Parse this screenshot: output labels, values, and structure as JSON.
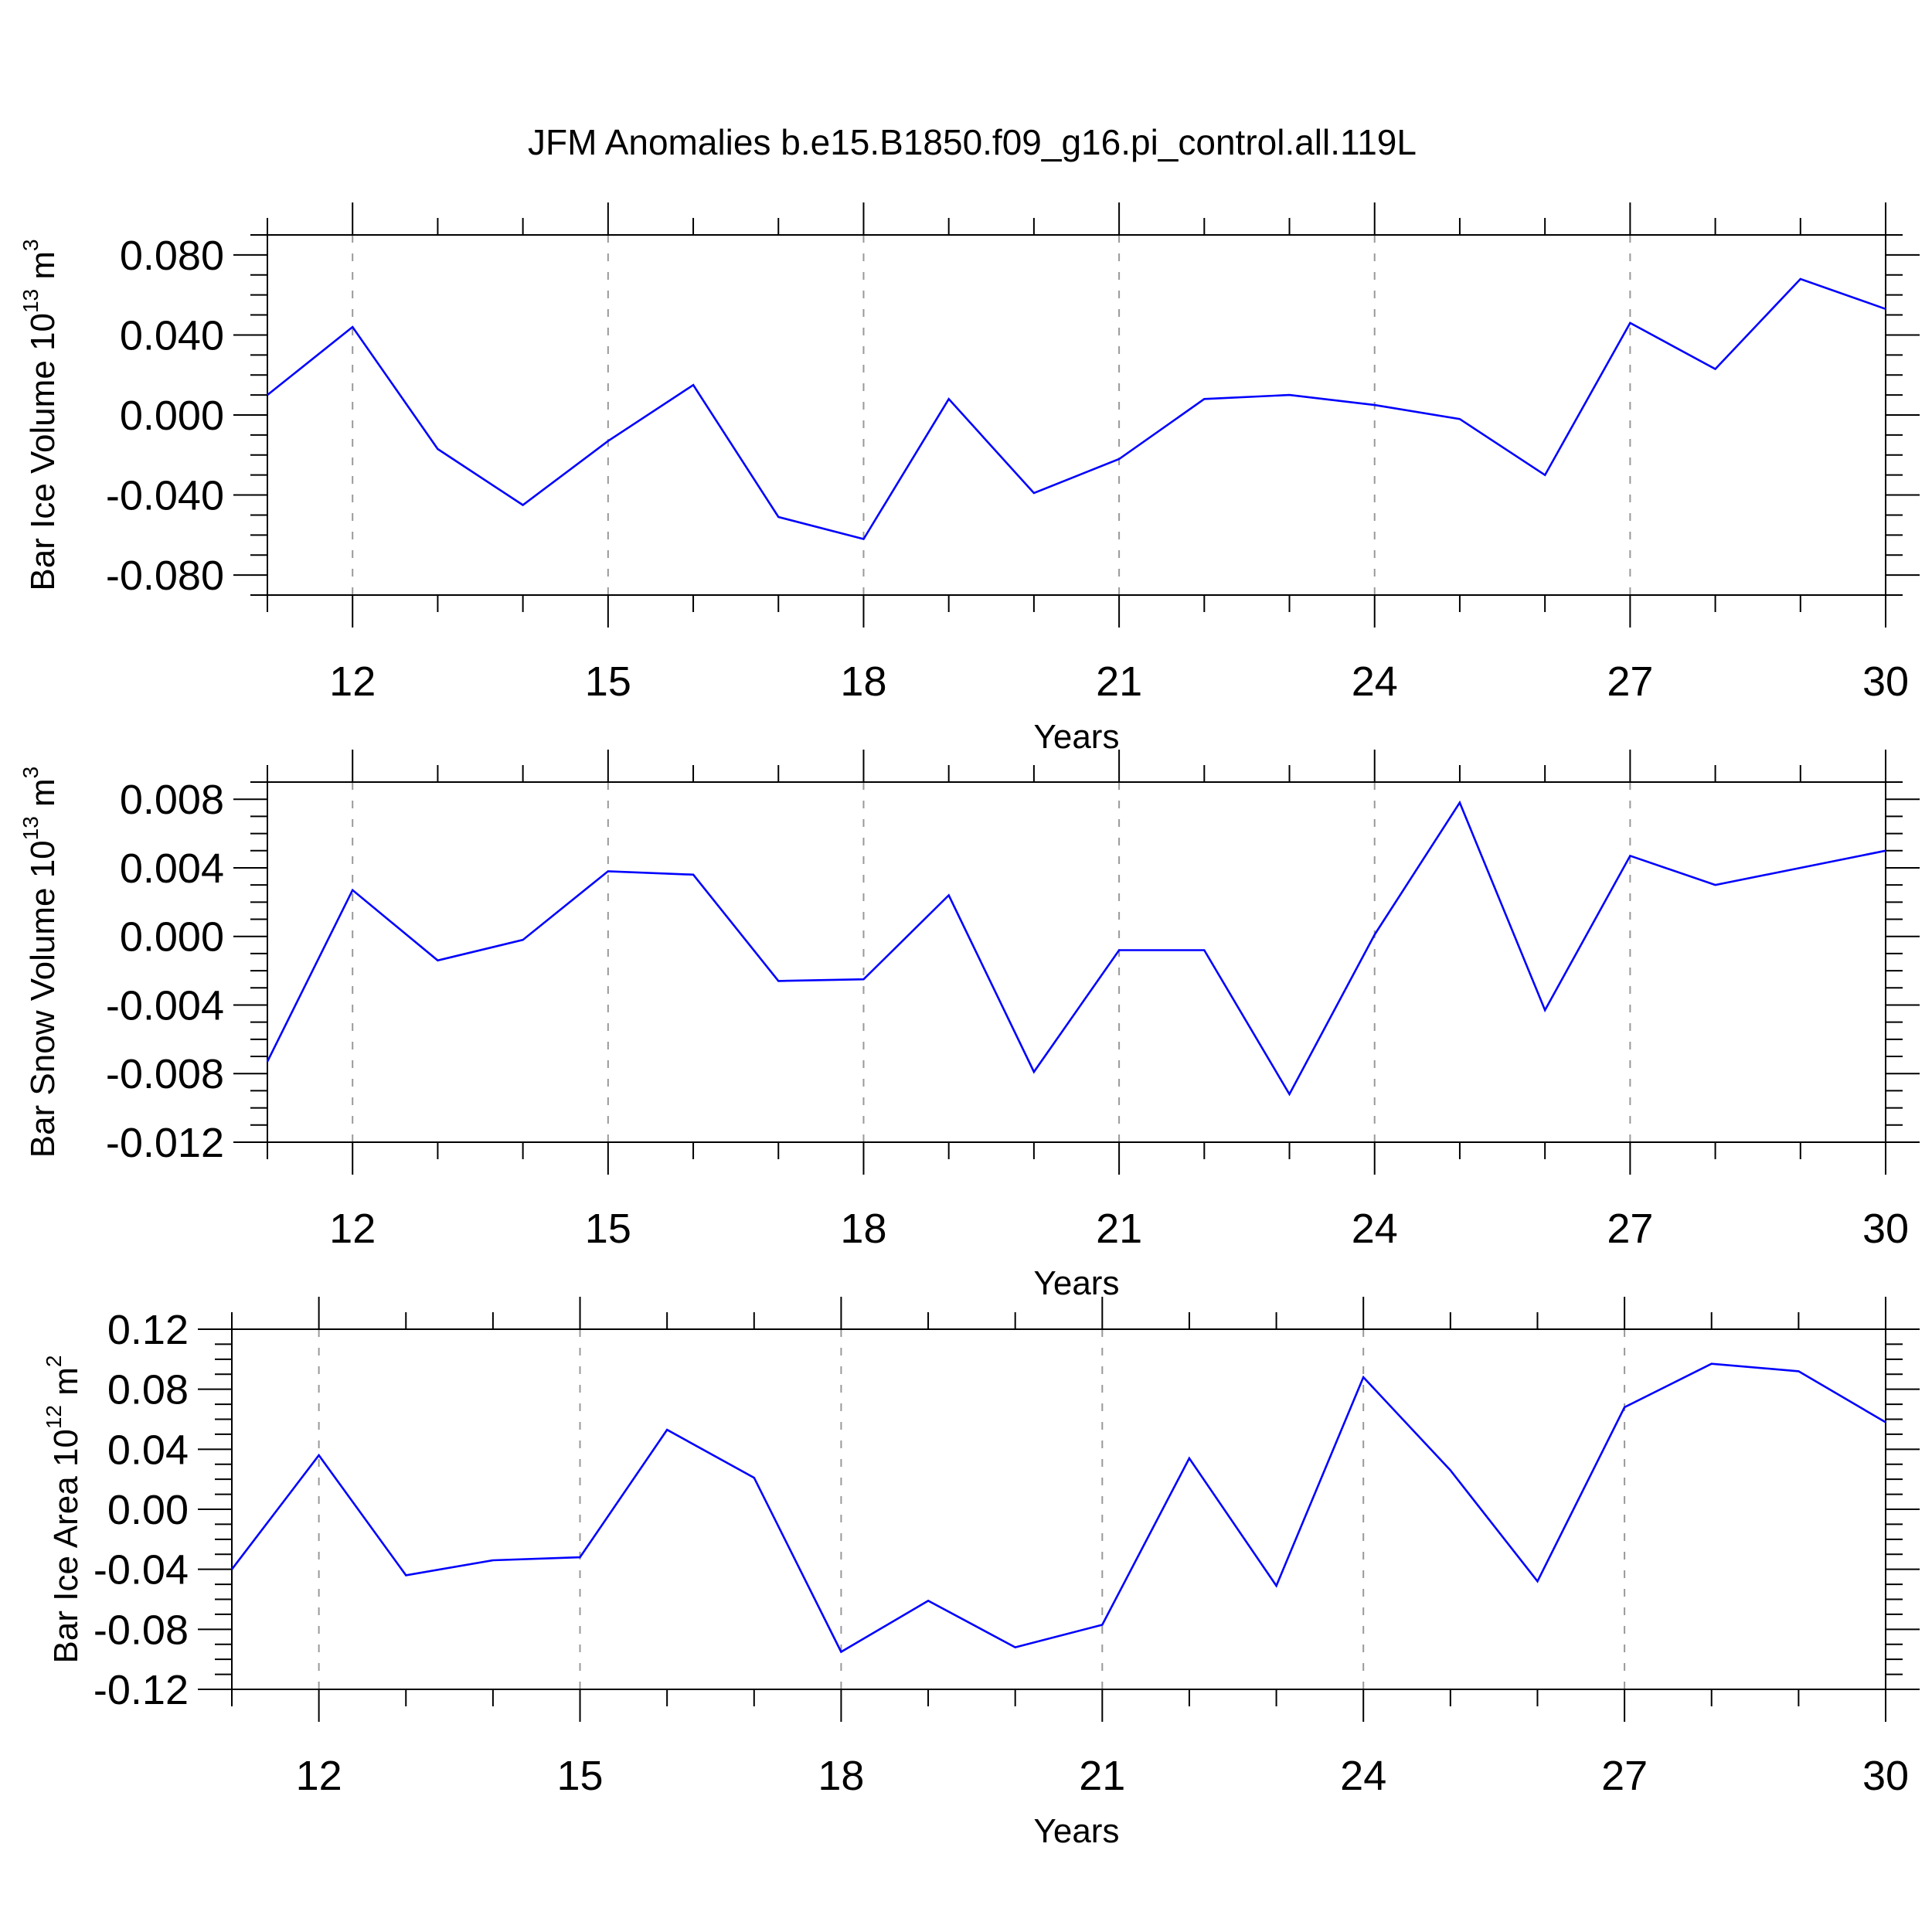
{
  "title": "JFM Anomalies b.e15.B1850.f09_g16.pi_control.all.119L",
  "chart_data": [
    {
      "type": "line",
      "title": "JFM Anomalies b.e15.B1850.f09_g16.pi_control.all.119L",
      "xlabel": "Years",
      "ylabel": {
        "base": "Bar Ice Volume 10",
        "exp": "13",
        "unit": " m",
        "unit_exp": "3"
      },
      "xlim": [
        11,
        30
      ],
      "ylim": [
        -0.09,
        0.09
      ],
      "xticks": [
        12,
        15,
        18,
        21,
        24,
        27,
        30
      ],
      "xtick_labels": [
        "12",
        "15",
        "18",
        "21",
        "24",
        "27",
        "30"
      ],
      "yticks": [
        -0.08,
        -0.04,
        0.0,
        0.04,
        0.08
      ],
      "ytick_labels": [
        "-0.080",
        "-0.040",
        "0.000",
        "0.040",
        "0.080"
      ],
      "y_minor_step": 0.01,
      "grid": "x-dashed",
      "color": "#0000ff",
      "x": [
        11,
        12,
        13,
        14,
        15,
        16,
        17,
        18,
        19,
        20,
        21,
        22,
        23,
        24,
        25,
        26,
        27,
        28,
        29,
        30
      ],
      "values": [
        0.01,
        0.044,
        -0.017,
        -0.045,
        -0.013,
        0.015,
        -0.051,
        -0.062,
        0.008,
        -0.039,
        -0.022,
        0.008,
        0.01,
        0.005,
        -0.002,
        -0.03,
        0.046,
        0.023,
        0.068,
        0.053
      ]
    },
    {
      "type": "line",
      "xlabel": "Years",
      "ylabel": {
        "base": "Bar Snow Volume 10",
        "exp": "13",
        "unit": " m",
        "unit_exp": "3"
      },
      "xlim": [
        11,
        30
      ],
      "ylim": [
        -0.012,
        0.009
      ],
      "xticks": [
        12,
        15,
        18,
        21,
        24,
        27,
        30
      ],
      "xtick_labels": [
        "12",
        "15",
        "18",
        "21",
        "24",
        "27",
        "30"
      ],
      "yticks": [
        -0.012,
        -0.008,
        -0.004,
        0.0,
        0.004,
        0.008
      ],
      "ytick_labels": [
        "-0.012",
        "-0.008",
        "-0.004",
        "0.000",
        "0.004",
        "0.008"
      ],
      "y_minor_step": 0.001,
      "grid": "x-dashed",
      "color": "#0000ff",
      "x": [
        11,
        12,
        13,
        14,
        15,
        16,
        17,
        18,
        19,
        20,
        21,
        22,
        23,
        24,
        25,
        26,
        27,
        28,
        29,
        30
      ],
      "values": [
        -0.0073,
        0.0027,
        -0.0014,
        -0.0002,
        0.0038,
        0.0036,
        -0.0026,
        -0.0025,
        0.0024,
        -0.0079,
        -0.0008,
        -0.0008,
        -0.0092,
        0.0001,
        0.0078,
        -0.0043,
        0.0047,
        0.003,
        0.004,
        0.005
      ]
    },
    {
      "type": "line",
      "xlabel": "Years",
      "ylabel": {
        "base": "Bar Ice Area 10",
        "exp": "12",
        "unit": " m",
        "unit_exp": "2"
      },
      "xlim": [
        11,
        30
      ],
      "ylim": [
        -0.12,
        0.12
      ],
      "xticks": [
        12,
        15,
        18,
        21,
        24,
        27,
        30
      ],
      "xtick_labels": [
        "12",
        "15",
        "18",
        "21",
        "24",
        "27",
        "30"
      ],
      "yticks": [
        -0.12,
        -0.08,
        -0.04,
        0.0,
        0.04,
        0.08,
        0.12
      ],
      "ytick_labels": [
        "-0.12",
        "-0.08",
        "-0.04",
        "0.00",
        "0.04",
        "0.08",
        "0.12"
      ],
      "y_minor_step": 0.01,
      "grid": "x-dashed",
      "color": "#0000ff",
      "x": [
        11,
        12,
        13,
        14,
        15,
        16,
        17,
        18,
        19,
        20,
        21,
        22,
        23,
        24,
        25,
        26,
        27,
        28,
        29,
        30
      ],
      "values": [
        -0.04,
        0.036,
        -0.044,
        -0.034,
        -0.032,
        0.053,
        0.021,
        -0.095,
        -0.061,
        -0.092,
        -0.077,
        0.034,
        -0.051,
        0.088,
        0.026,
        -0.048,
        0.068,
        0.097,
        0.092,
        0.058
      ]
    }
  ]
}
